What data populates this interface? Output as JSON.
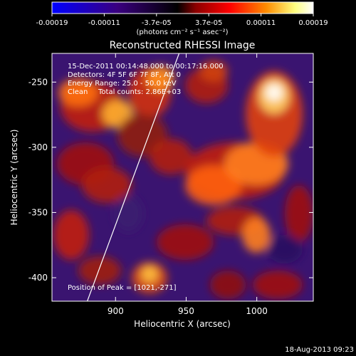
{
  "chart_data": {
    "type": "heatmap",
    "title": "Reconstructed RHESSI Image",
    "xlabel": "Heliocentric X (arcsec)",
    "ylabel": "Heliocentric Y (arcsec)",
    "xlim": [
      855,
      1040
    ],
    "ylim": [
      -418,
      -228
    ],
    "x_ticks": [
      900,
      950,
      1000
    ],
    "y_ticks": [
      -250,
      -300,
      -350,
      -400
    ],
    "colorbar": {
      "ticks": [
        "-0.00019",
        "-0.00011",
        "-3.7e-05",
        "3.7e-05",
        "0.00011",
        "0.00019"
      ],
      "unit_label": "(photons cm⁻² s⁻¹ asec⁻²)",
      "colors": [
        "#0000ff",
        "#3a0080",
        "#000000",
        "#8b0000",
        "#ff0000",
        "#ff8c00",
        "#ffff80",
        "#ffffff"
      ]
    },
    "annotations": {
      "time": "15-Dec-2011 00:14:48.000 to 00:17:16.000",
      "detectors": "Detectors: 4F 5F 6F 7F 8F, Att 0",
      "energy": "Energy Range: 25.0 - 50.0 keV",
      "clean": "Clean",
      "counts": "Total counts: 2.86E+03",
      "peak": "Position of Peak = [1021,-271]"
    },
    "limb_line": [
      [
        880,
        -418
      ],
      [
        945,
        -228
      ]
    ],
    "peak": [
      1021,
      -271
    ],
    "footer": "18-Aug-2013 09:23"
  }
}
